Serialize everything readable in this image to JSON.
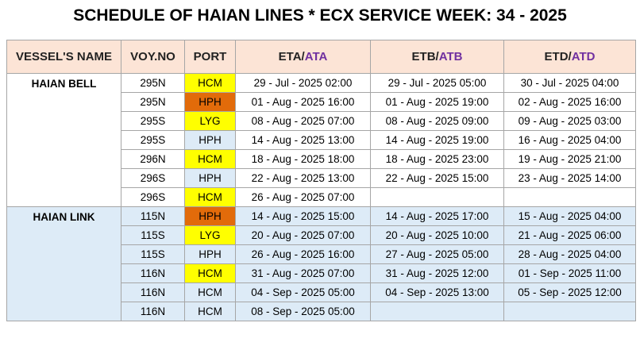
{
  "title": "SCHEDULE OF HAIAN LINES * ECX SERVICE WEEK: 34 - 2025",
  "headers": [
    {
      "text": "VESSEL'S NAME"
    },
    {
      "text": "VOY.NO"
    },
    {
      "text": "PORT"
    },
    {
      "text": "ETA/",
      "accent": "ATA"
    },
    {
      "text": "ETB/",
      "accent": "ATB"
    },
    {
      "text": "ETD/",
      "accent": "ATD"
    }
  ],
  "header_color": "#fce4d6",
  "accent_color": "#7030a0",
  "vessels": [
    {
      "name": "HAIAN BELL",
      "background": "#ffffff",
      "rows": [
        {
          "voy": "295N",
          "port": "HCM",
          "port_color": "#ffff00",
          "eta": "29 - Jul - 2025 02:00",
          "etb": "29 - Jul - 2025 05:00",
          "etd": "30 - Jul - 2025 04:00"
        },
        {
          "voy": "295N",
          "port": "HPH",
          "port_color": "#e26b0a",
          "eta": "01 - Aug - 2025 16:00",
          "etb": "01 - Aug - 2025 19:00",
          "etd": "02 - Aug - 2025 16:00"
        },
        {
          "voy": "295S",
          "port": "LYG",
          "port_color": "#ffff00",
          "eta": "08 - Aug - 2025 07:00",
          "etb": "08 - Aug - 2025 09:00",
          "etd": "09 - Aug - 2025 03:00"
        },
        {
          "voy": "295S",
          "port": "HPH",
          "port_color": "#ddebf7",
          "eta": "14 - Aug - 2025 13:00",
          "etb": "14 - Aug - 2025 19:00",
          "etd": "16 - Aug - 2025 04:00"
        },
        {
          "voy": "296N",
          "port": "HCM",
          "port_color": "#ffff00",
          "eta": "18 - Aug - 2025 18:00",
          "etb": "18 - Aug - 2025 23:00",
          "etd": "19 - Aug - 2025 21:00"
        },
        {
          "voy": "296S",
          "port": "HPH",
          "port_color": "#ddebf7",
          "eta": "22 - Aug - 2025 13:00",
          "etb": "22 - Aug - 2025 15:00",
          "etd": "23 - Aug - 2025 14:00"
        },
        {
          "voy": "296S",
          "port": "HCM",
          "port_color": "#ffff00",
          "eta": "26 - Aug - 2025 07:00",
          "etb": null,
          "etd": null
        }
      ]
    },
    {
      "name": "HAIAN LINK",
      "background": "#ddebf7",
      "rows": [
        {
          "voy": "115N",
          "port": "HPH",
          "port_color": "#e26b0a",
          "eta": "14 - Aug - 2025 15:00",
          "etb": "14 - Aug - 2025 17:00",
          "etd": "15 - Aug - 2025 04:00"
        },
        {
          "voy": "115S",
          "port": "LYG",
          "port_color": "#ffff00",
          "eta": "20 - Aug - 2025 07:00",
          "etb": "20 - Aug - 2025 10:00",
          "etd": "21 - Aug - 2025 06:00"
        },
        {
          "voy": "115S",
          "port": "HPH",
          "port_color": null,
          "eta": "26 - Aug - 2025 16:00",
          "etb": "27 - Aug - 2025 05:00",
          "etd": "28 - Aug - 2025 04:00"
        },
        {
          "voy": "116N",
          "port": "HCM",
          "port_color": "#ffff00",
          "eta": "31 - Aug - 2025 07:00",
          "etb": "31 - Aug - 2025 12:00",
          "etd": "01 - Sep - 2025 11:00"
        },
        {
          "voy": "116N",
          "port": "HCM",
          "port_color": null,
          "eta": "04 - Sep - 2025 05:00",
          "etb": "04 - Sep - 2025 13:00",
          "etd": "05 - Sep - 2025 12:00"
        },
        {
          "voy": "116N",
          "port": "HCM",
          "port_color": null,
          "eta": "08 - Sep - 2025 05:00",
          "etb": null,
          "etd": null
        }
      ]
    }
  ]
}
